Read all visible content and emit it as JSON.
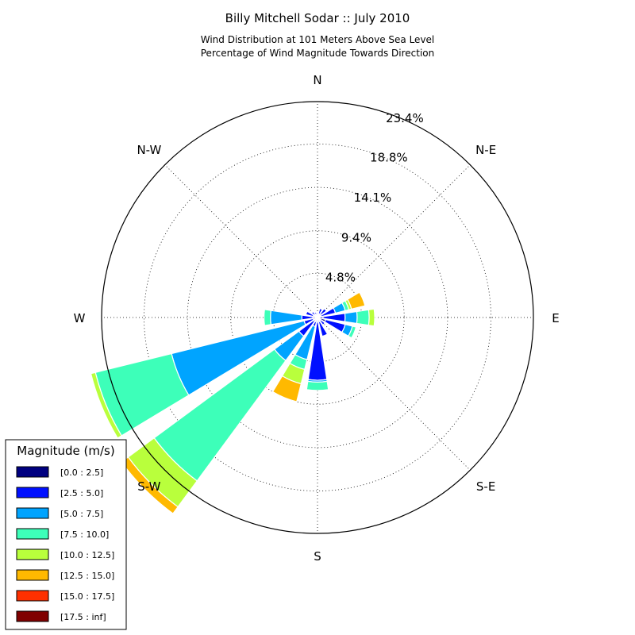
{
  "chart_data": {
    "type": "windrose",
    "title": "Billy Mitchell Sodar :: July 2010",
    "subtitle_lines": [
      "Wind Distribution at 101 Meters Above Sea Level",
      "Percentage of Wind Magnitude Towards Direction"
    ],
    "directions": [
      "N",
      "N-E",
      "E",
      "S-E",
      "S",
      "S-W",
      "W",
      "N-W"
    ],
    "radial_ticks": [
      "4.8%",
      "9.4%",
      "14.1%",
      "18.8%",
      "23.4%"
    ],
    "radial_max": 23.4,
    "grid": true,
    "legend": {
      "title": "Magnitude (m/s)",
      "placement": "bottom-left",
      "entries": [
        {
          "label": "[0.0 : 2.5]",
          "color": "#000080"
        },
        {
          "label": "[2.5 : 5.0]",
          "color": "#0010ff"
        },
        {
          "label": "[5.0 : 7.5]",
          "color": "#00a4ff"
        },
        {
          "label": "[7.5 : 10.0]",
          "color": "#3dffb9"
        },
        {
          "label": "[10.0 : 12.5]",
          "color": "#b9ff3c"
        },
        {
          "label": "[12.5 : 15.0]",
          "color": "#ffb900"
        },
        {
          "label": "[15.0 : 17.5]",
          "color": "#ff3000"
        },
        {
          "label": "[17.5 : inf]",
          "color": "#800000"
        }
      ]
    },
    "sectors": [
      {
        "bearing": 0,
        "values": [
          0.3,
          0.2
        ]
      },
      {
        "bearing": 22.5,
        "values": [
          0.4,
          0.6
        ]
      },
      {
        "bearing": 45,
        "values": [
          0.4,
          0.8
        ]
      },
      {
        "bearing": 67.5,
        "values": [
          0.4,
          1.6,
          1.1,
          0.4,
          0.3,
          1.5
        ]
      },
      {
        "bearing": 90,
        "values": [
          0.6,
          2.4,
          1.3,
          1.3,
          0.6
        ]
      },
      {
        "bearing": 112.5,
        "values": [
          0.9,
          2.2,
          0.8,
          0.4
        ]
      },
      {
        "bearing": 135,
        "values": [
          0.4,
          0.6
        ]
      },
      {
        "bearing": 157.5,
        "values": [
          0.5,
          1.6
        ]
      },
      {
        "bearing": 180,
        "values": [
          0.5,
          6.3,
          0.2,
          0.9
        ]
      },
      {
        "bearing": 202.5,
        "values": [
          0.5,
          0.5,
          3.7,
          1.1,
          1.6,
          2.0
        ]
      },
      {
        "bearing": 225,
        "values": [
          0.5,
          2.0,
          3.3,
          16.2,
          3.5,
          0.9
        ]
      },
      {
        "bearing": 247.5,
        "values": [
          0.5,
          1.0,
          14.8,
          8.5,
          0.5
        ]
      },
      {
        "bearing": 270,
        "values": [
          0.5,
          1.2,
          3.4,
          0.7
        ]
      },
      {
        "bearing": 292.5,
        "values": [
          0.5,
          0.8
        ]
      },
      {
        "bearing": 315,
        "values": [
          0.4,
          0.4
        ]
      },
      {
        "bearing": 337.5,
        "values": [
          0.3,
          0.3
        ]
      }
    ]
  }
}
